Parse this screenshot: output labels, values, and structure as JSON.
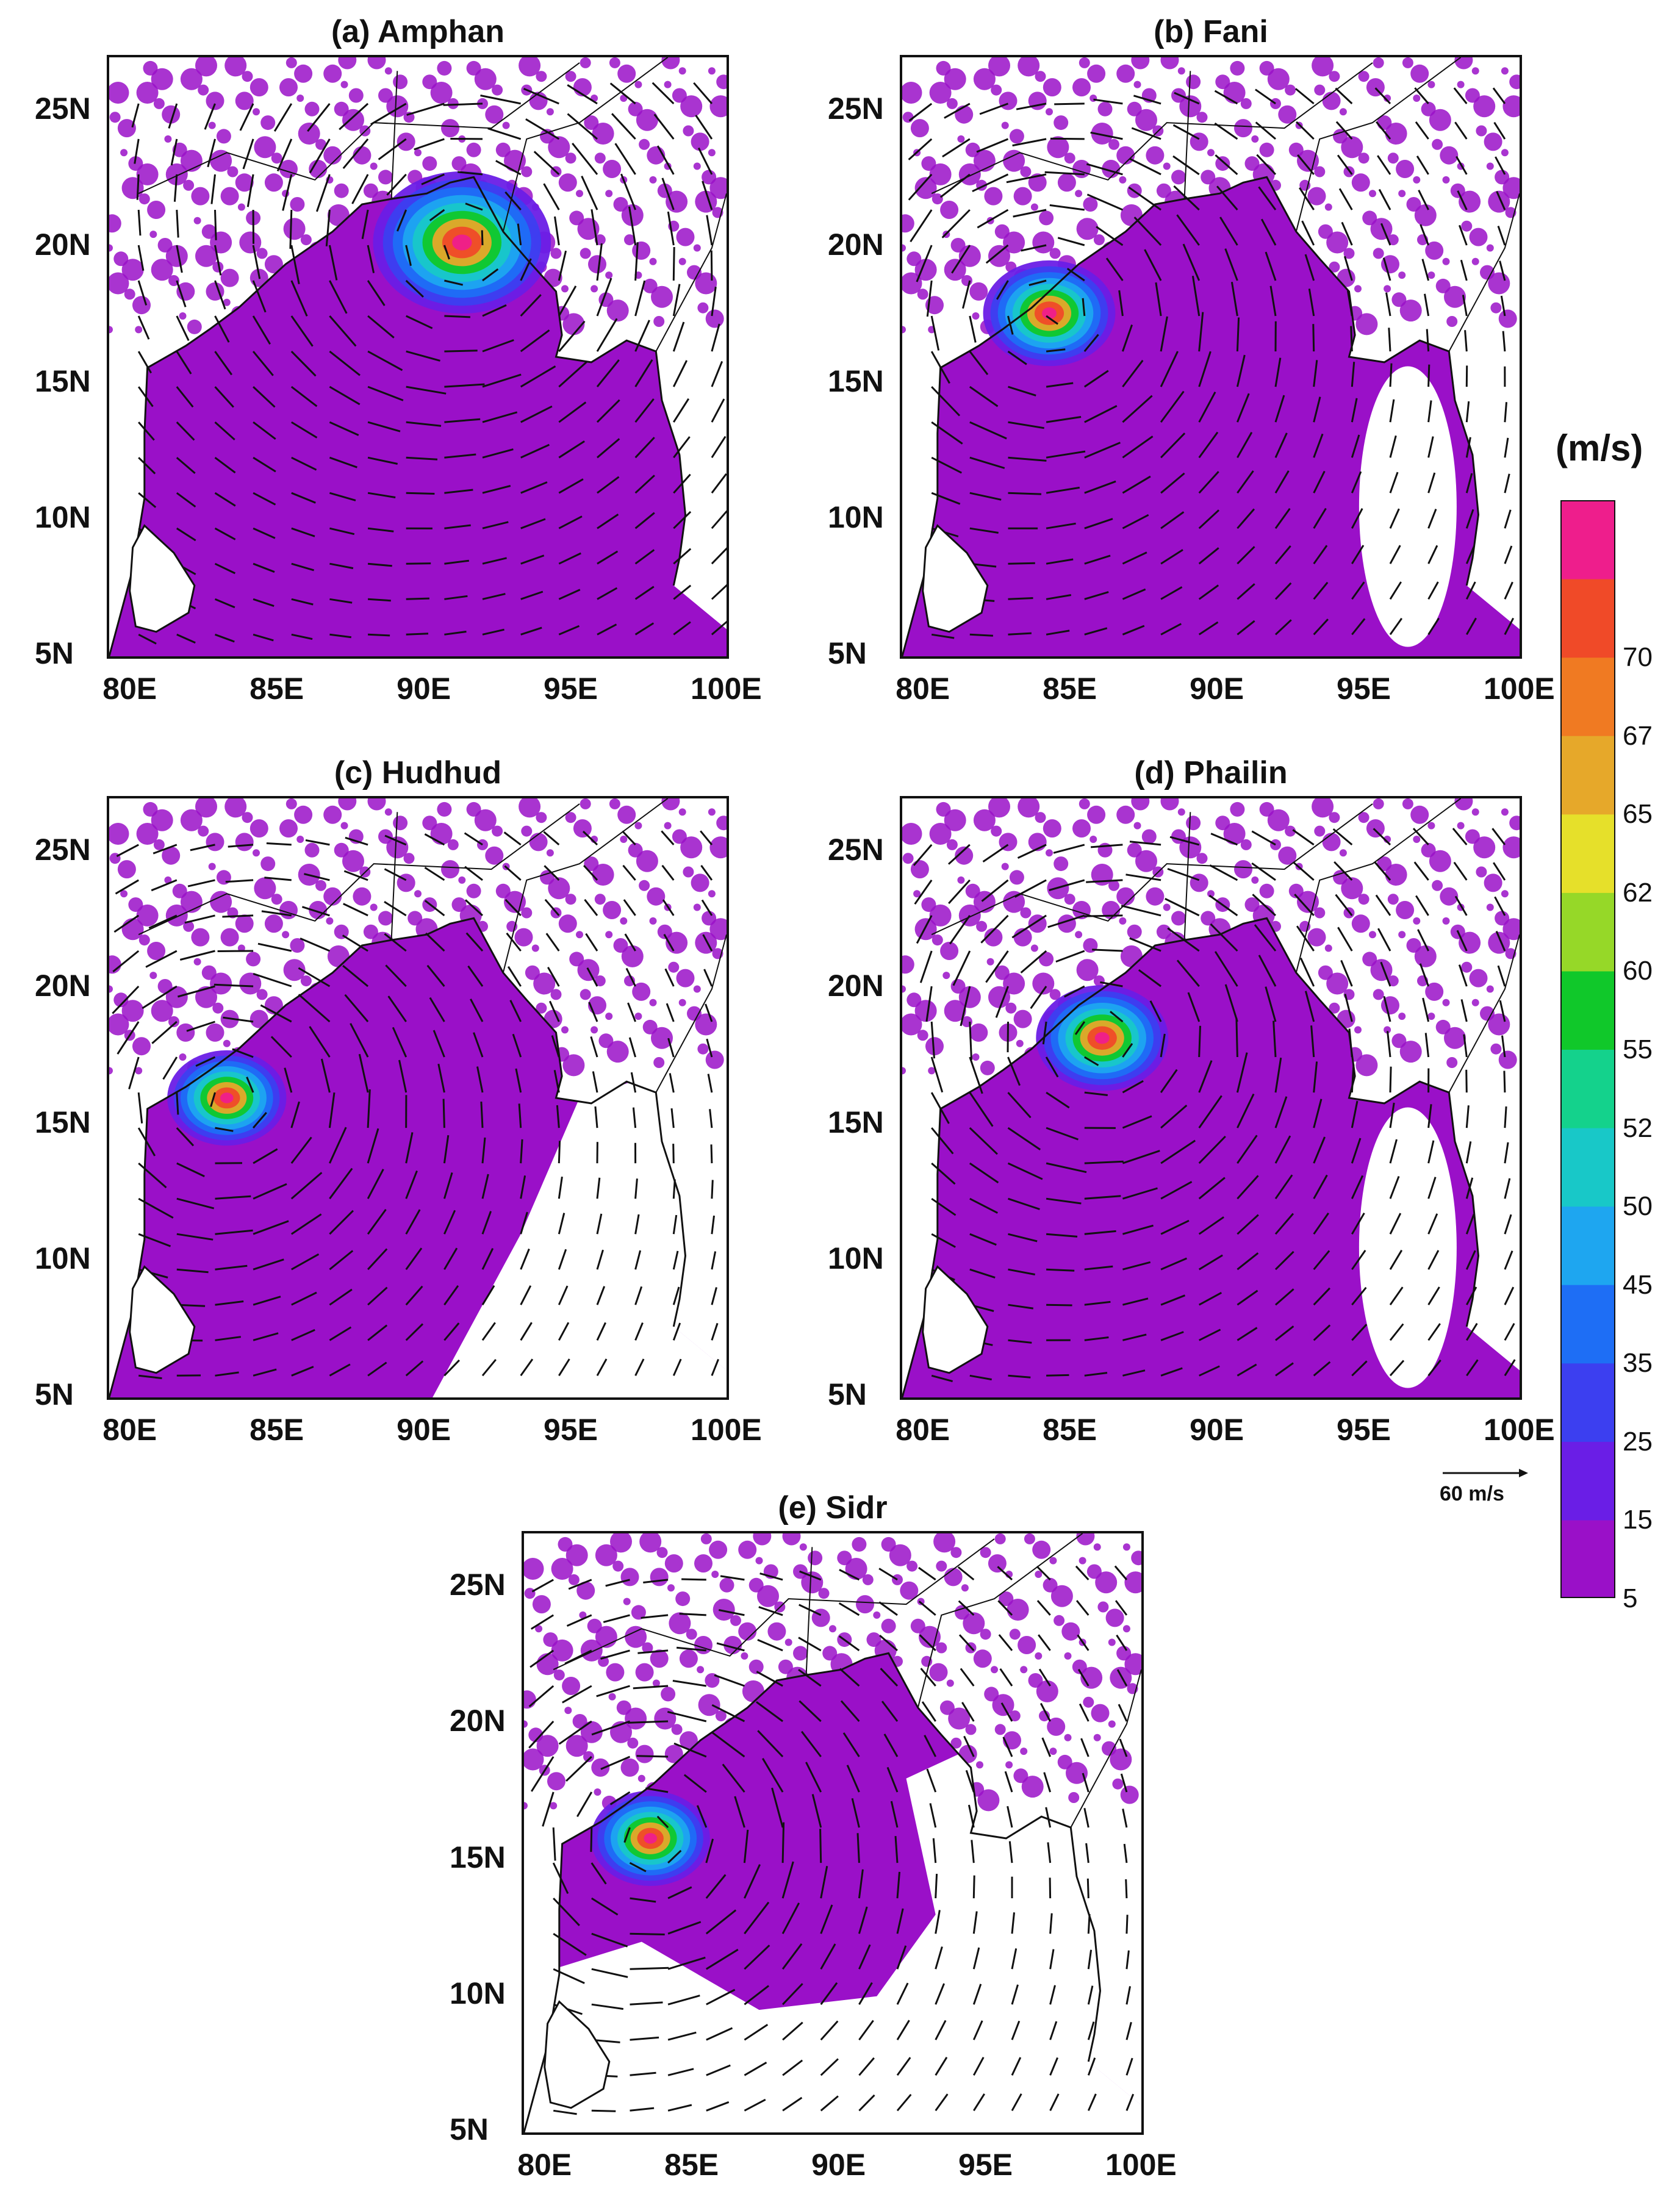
{
  "panels": [
    {
      "title": "(a) Amphan",
      "center": [
        91.0,
        20.2
      ],
      "radius_deg": 5.5,
      "coverage": "full"
    },
    {
      "title": "(b) Fani",
      "center": [
        84.0,
        17.6
      ],
      "radius_deg": 5.0,
      "coverage": "east-clear"
    },
    {
      "title": "(c) Hudhud",
      "center": [
        83.0,
        16.0
      ],
      "radius_deg": 4.5,
      "coverage": "southeast-clear"
    },
    {
      "title": "(d) Phailin",
      "center": [
        85.8,
        18.2
      ],
      "radius_deg": 5.0,
      "coverage": "east-clear"
    },
    {
      "title": "(e) Sidr",
      "center": [
        83.3,
        15.8
      ],
      "radius_deg": 4.5,
      "coverage": "south-clear"
    }
  ],
  "axes": {
    "x_ticks": [
      "80E",
      "85E",
      "90E",
      "95E",
      "100E"
    ],
    "y_ticks": [
      "5N",
      "10N",
      "15N",
      "20N",
      "25N"
    ],
    "xlim": [
      79,
      100
    ],
    "ylim": [
      5,
      27
    ]
  },
  "colorbar": {
    "title": "(m/s)",
    "levels": [
      "5",
      "15",
      "25",
      "35",
      "45",
      "50",
      "52",
      "55",
      "60",
      "62",
      "65",
      "67",
      "70"
    ],
    "colors": [
      "#9a10c8",
      "#6a1ee6",
      "#3c3ff0",
      "#1e6ef5",
      "#1ea6f0",
      "#18c8c8",
      "#14d28c",
      "#10c82a",
      "#96d828",
      "#e6e02a",
      "#e6a82a",
      "#f07a22",
      "#f04a28",
      "#ee1e8c"
    ]
  },
  "reference_vector": {
    "label": "60 m/s"
  },
  "colors": {
    "land_shade": "#9a10c8",
    "frame": "#111111",
    "background": "#ffffff"
  }
}
